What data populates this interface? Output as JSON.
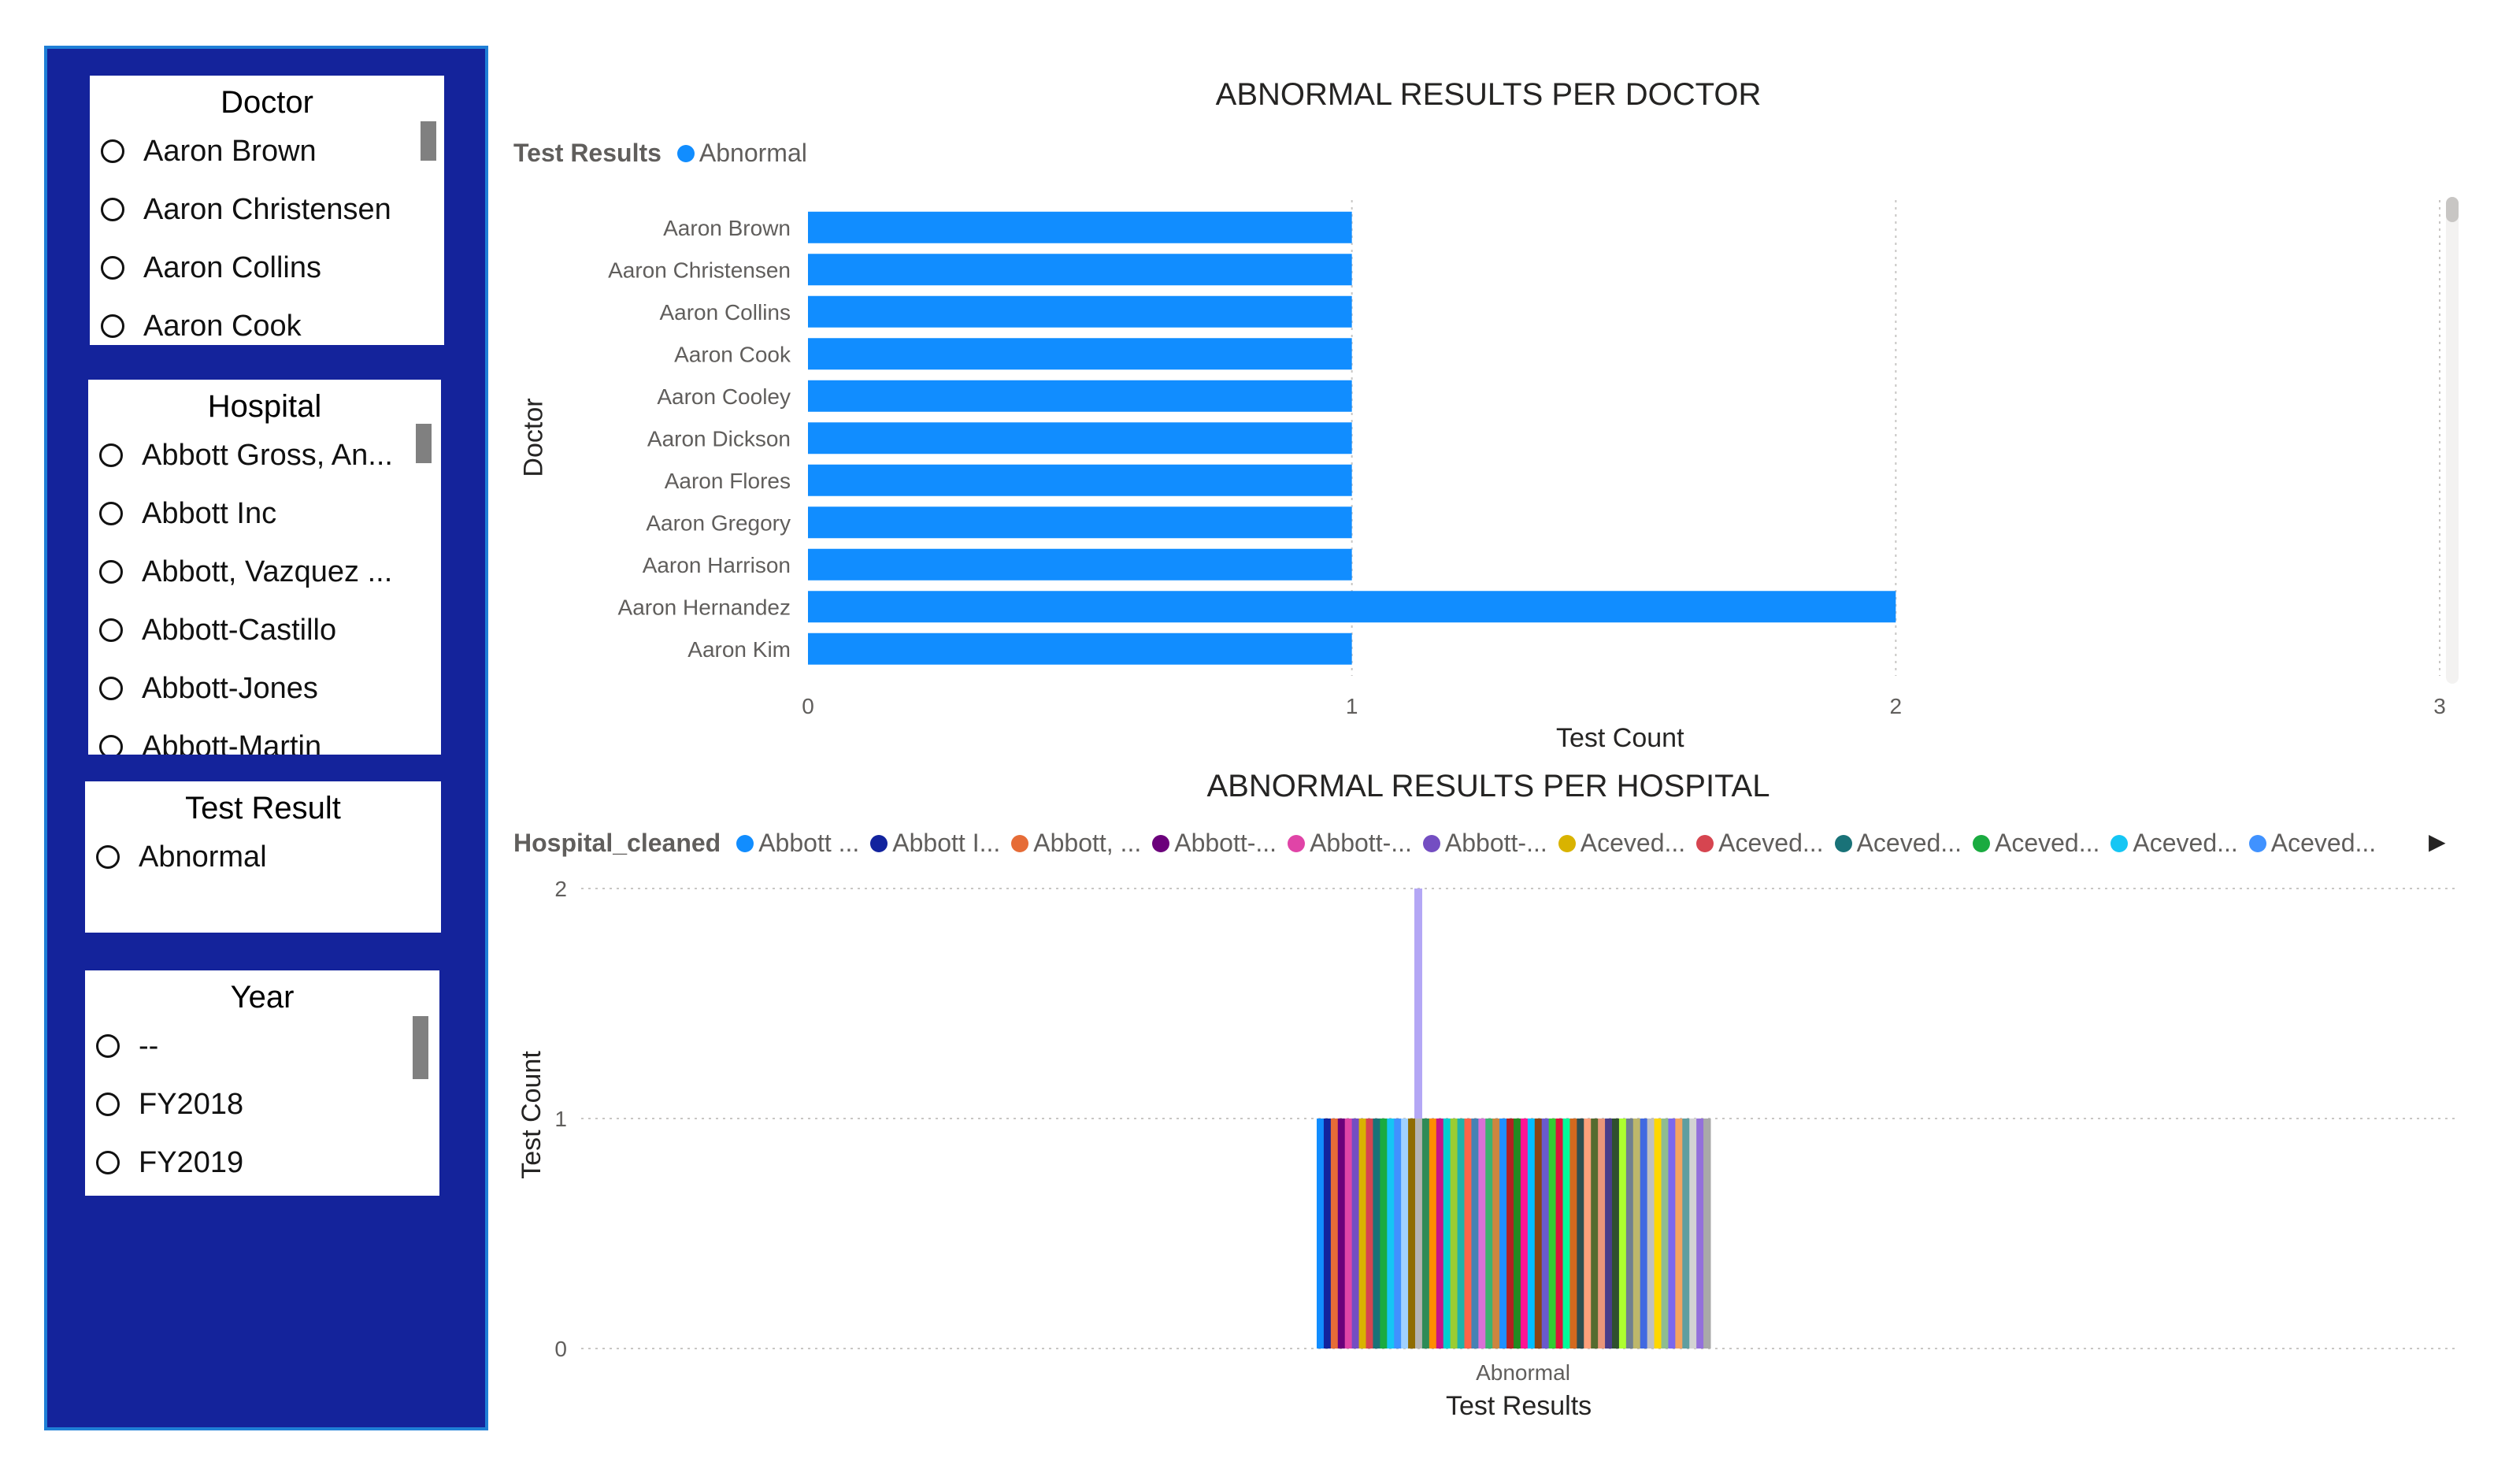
{
  "slicers": {
    "doctor": {
      "title": "Doctor",
      "items": [
        "Aaron Brown",
        "Aaron Christensen",
        "Aaron Collins",
        "Aaron Cook"
      ]
    },
    "hospital": {
      "title": "Hospital",
      "items": [
        "Abbott Gross, An...",
        "Abbott Inc",
        "Abbott, Vazquez ...",
        "Abbott-Castillo",
        "Abbott-Jones",
        "Abbott-Martin"
      ]
    },
    "test_result": {
      "title": "Test Result",
      "items": [
        "Abnormal"
      ]
    },
    "year": {
      "title": "Year",
      "items": [
        "--",
        "FY2018",
        "FY2019"
      ]
    }
  },
  "doctor_chart": {
    "title": "ABNORMAL RESULTS PER DOCTOR",
    "legend_title": "Test Results",
    "legend_items": [
      {
        "label": "Abnormal",
        "color": "#118dff"
      }
    ],
    "x_axis_title": "Test Count",
    "y_axis_title": "Doctor"
  },
  "hospital_chart": {
    "title": "ABNORMAL RESULTS PER HOSPITAL",
    "legend_title": "Hospital_cleaned",
    "legend_items": [
      {
        "label": "Abbott ...",
        "color": "#118dff"
      },
      {
        "label": "Abbott I...",
        "color": "#12239e"
      },
      {
        "label": "Abbott, ...",
        "color": "#e66c37"
      },
      {
        "label": "Abbott-...",
        "color": "#6b007b"
      },
      {
        "label": "Abbott-...",
        "color": "#e044a7"
      },
      {
        "label": "Abbott-...",
        "color": "#744ec2"
      },
      {
        "label": "Aceved...",
        "color": "#d9b300"
      },
      {
        "label": "Aceved...",
        "color": "#d64550"
      },
      {
        "label": "Aceved...",
        "color": "#197278"
      },
      {
        "label": "Aceved...",
        "color": "#1aab40"
      },
      {
        "label": "Aceved...",
        "color": "#15c6f4"
      },
      {
        "label": "Aceved...",
        "color": "#4092ff"
      }
    ],
    "legend_arrow": "▶",
    "x_axis_title": "Test Results",
    "y_axis_title": "Test Count"
  },
  "chart_data": [
    {
      "type": "bar",
      "orientation": "horizontal",
      "title": "ABNORMAL RESULTS PER DOCTOR",
      "xlabel": "Test Count",
      "ylabel": "Doctor",
      "categories": [
        "Aaron Brown",
        "Aaron Christensen",
        "Aaron Collins",
        "Aaron Cook",
        "Aaron Cooley",
        "Aaron Dickson",
        "Aaron Flores",
        "Aaron Gregory",
        "Aaron Harrison",
        "Aaron Hernandez",
        "Aaron Kim"
      ],
      "series": [
        {
          "name": "Abnormal",
          "values": [
            1,
            1,
            1,
            1,
            1,
            1,
            1,
            1,
            1,
            2,
            1
          ],
          "color": "#118dff"
        }
      ],
      "xlim": [
        0,
        3
      ],
      "x_ticks": [
        "0",
        "1",
        "2",
        "3"
      ],
      "grid": true,
      "legend": "top-left"
    },
    {
      "type": "bar",
      "orientation": "vertical",
      "title": "ABNORMAL RESULTS PER HOSPITAL",
      "xlabel": "Test Results",
      "ylabel": "Test Count",
      "categories": [
        "Abnormal"
      ],
      "ylim": [
        0,
        2
      ],
      "y_ticks": [
        "0",
        "1",
        "2"
      ],
      "grid": true,
      "legend": "top-left",
      "bar_colors": [
        "#118dff",
        "#12239e",
        "#e66c37",
        "#6b007b",
        "#e044a7",
        "#744ec2",
        "#d9b300",
        "#d64550",
        "#197278",
        "#1aab40",
        "#15c6f4",
        "#4092ff",
        "#a0d1ff",
        "#8f6c00",
        "#b3b3b3",
        "#2e8b57",
        "#ff8c00",
        "#c71585",
        "#00ced1",
        "#9acd32",
        "#20b2aa",
        "#ff6347",
        "#4682b4",
        "#da70d6",
        "#3cb371",
        "#cd853f",
        "#1e90ff",
        "#b22222",
        "#228b22",
        "#ff1493",
        "#00bfff",
        "#8b4513",
        "#6a5acd",
        "#32cd32",
        "#dc143c",
        "#00fa9a",
        "#d2691e",
        "#2f4f4f",
        "#ffa07a",
        "#556b2f",
        "#e9967a",
        "#483d8b",
        "#2f4f2f",
        "#adff2f",
        "#708090",
        "#bdb76b",
        "#4169e1",
        "#c0c0c0",
        "#ffd700",
        "#8fbc8f",
        "#7b68ee",
        "#f4a460",
        "#5f9ea0",
        "#d3d3d3",
        "#9370db",
        "#a9a9a9"
      ],
      "bar_values": [
        1,
        1,
        1,
        1,
        1,
        1,
        1,
        1,
        1,
        1,
        1,
        1,
        1,
        1,
        1,
        1,
        1,
        1,
        1,
        1,
        1,
        1,
        1,
        1,
        1,
        1,
        1,
        1,
        1,
        1,
        1,
        1,
        1,
        1,
        1,
        1,
        1,
        1,
        1,
        1,
        1,
        1,
        1,
        1,
        1,
        1,
        1,
        1,
        1,
        1,
        1,
        1,
        1,
        1,
        1,
        1
      ],
      "highlight_value": 2,
      "highlight_color": "#b4a7f5"
    }
  ]
}
